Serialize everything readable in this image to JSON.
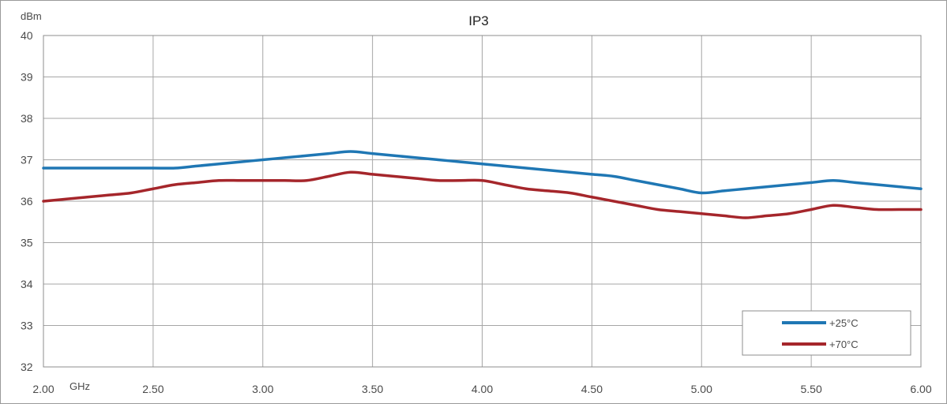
{
  "chart_data": {
    "type": "line",
    "title": "IP3",
    "xlabel": "GHz",
    "ylabel": "dBm",
    "xlim": [
      2.0,
      6.0
    ],
    "ylim": [
      32,
      40
    ],
    "x_ticks": [
      "2.00",
      "2.50",
      "3.00",
      "3.50",
      "4.00",
      "4.50",
      "5.00",
      "5.50",
      "6.00"
    ],
    "y_ticks": [
      "32",
      "33",
      "34",
      "35",
      "36",
      "37",
      "38",
      "39",
      "40"
    ],
    "grid": true,
    "legend_position": "bottom-right",
    "series": [
      {
        "name": "+25°C",
        "color": "#1f77b4",
        "x": [
          2.0,
          2.1,
          2.2,
          2.3,
          2.4,
          2.5,
          2.6,
          2.7,
          2.8,
          2.9,
          3.0,
          3.1,
          3.2,
          3.3,
          3.4,
          3.5,
          3.6,
          3.7,
          3.8,
          3.9,
          4.0,
          4.1,
          4.2,
          4.3,
          4.4,
          4.5,
          4.6,
          4.7,
          4.8,
          4.9,
          5.0,
          5.1,
          5.2,
          5.3,
          5.4,
          5.5,
          5.6,
          5.7,
          5.8,
          5.9,
          6.0
        ],
        "y": [
          36.8,
          36.8,
          36.8,
          36.8,
          36.8,
          36.8,
          36.8,
          36.85,
          36.9,
          36.95,
          37.0,
          37.05,
          37.1,
          37.15,
          37.2,
          37.15,
          37.1,
          37.05,
          37.0,
          36.95,
          36.9,
          36.85,
          36.8,
          36.75,
          36.7,
          36.65,
          36.6,
          36.5,
          36.4,
          36.3,
          36.2,
          36.25,
          36.3,
          36.35,
          36.4,
          36.45,
          36.5,
          36.45,
          36.4,
          36.35,
          36.3
        ]
      },
      {
        "name": "+70°C",
        "color": "#a5262b",
        "x": [
          2.0,
          2.1,
          2.2,
          2.3,
          2.4,
          2.5,
          2.6,
          2.7,
          2.8,
          2.9,
          3.0,
          3.1,
          3.2,
          3.3,
          3.4,
          3.5,
          3.6,
          3.7,
          3.8,
          3.9,
          4.0,
          4.1,
          4.2,
          4.3,
          4.4,
          4.5,
          4.6,
          4.7,
          4.8,
          4.9,
          5.0,
          5.1,
          5.2,
          5.3,
          5.4,
          5.5,
          5.6,
          5.7,
          5.8,
          5.9,
          6.0
        ],
        "y": [
          36.0,
          36.05,
          36.1,
          36.15,
          36.2,
          36.3,
          36.4,
          36.45,
          36.5,
          36.5,
          36.5,
          36.5,
          36.5,
          36.6,
          36.7,
          36.65,
          36.6,
          36.55,
          36.5,
          36.5,
          36.5,
          36.4,
          36.3,
          36.25,
          36.2,
          36.1,
          36.0,
          35.9,
          35.8,
          35.75,
          35.7,
          35.65,
          35.6,
          35.65,
          35.7,
          35.8,
          35.9,
          35.85,
          35.8,
          35.8,
          35.8
        ]
      }
    ]
  }
}
